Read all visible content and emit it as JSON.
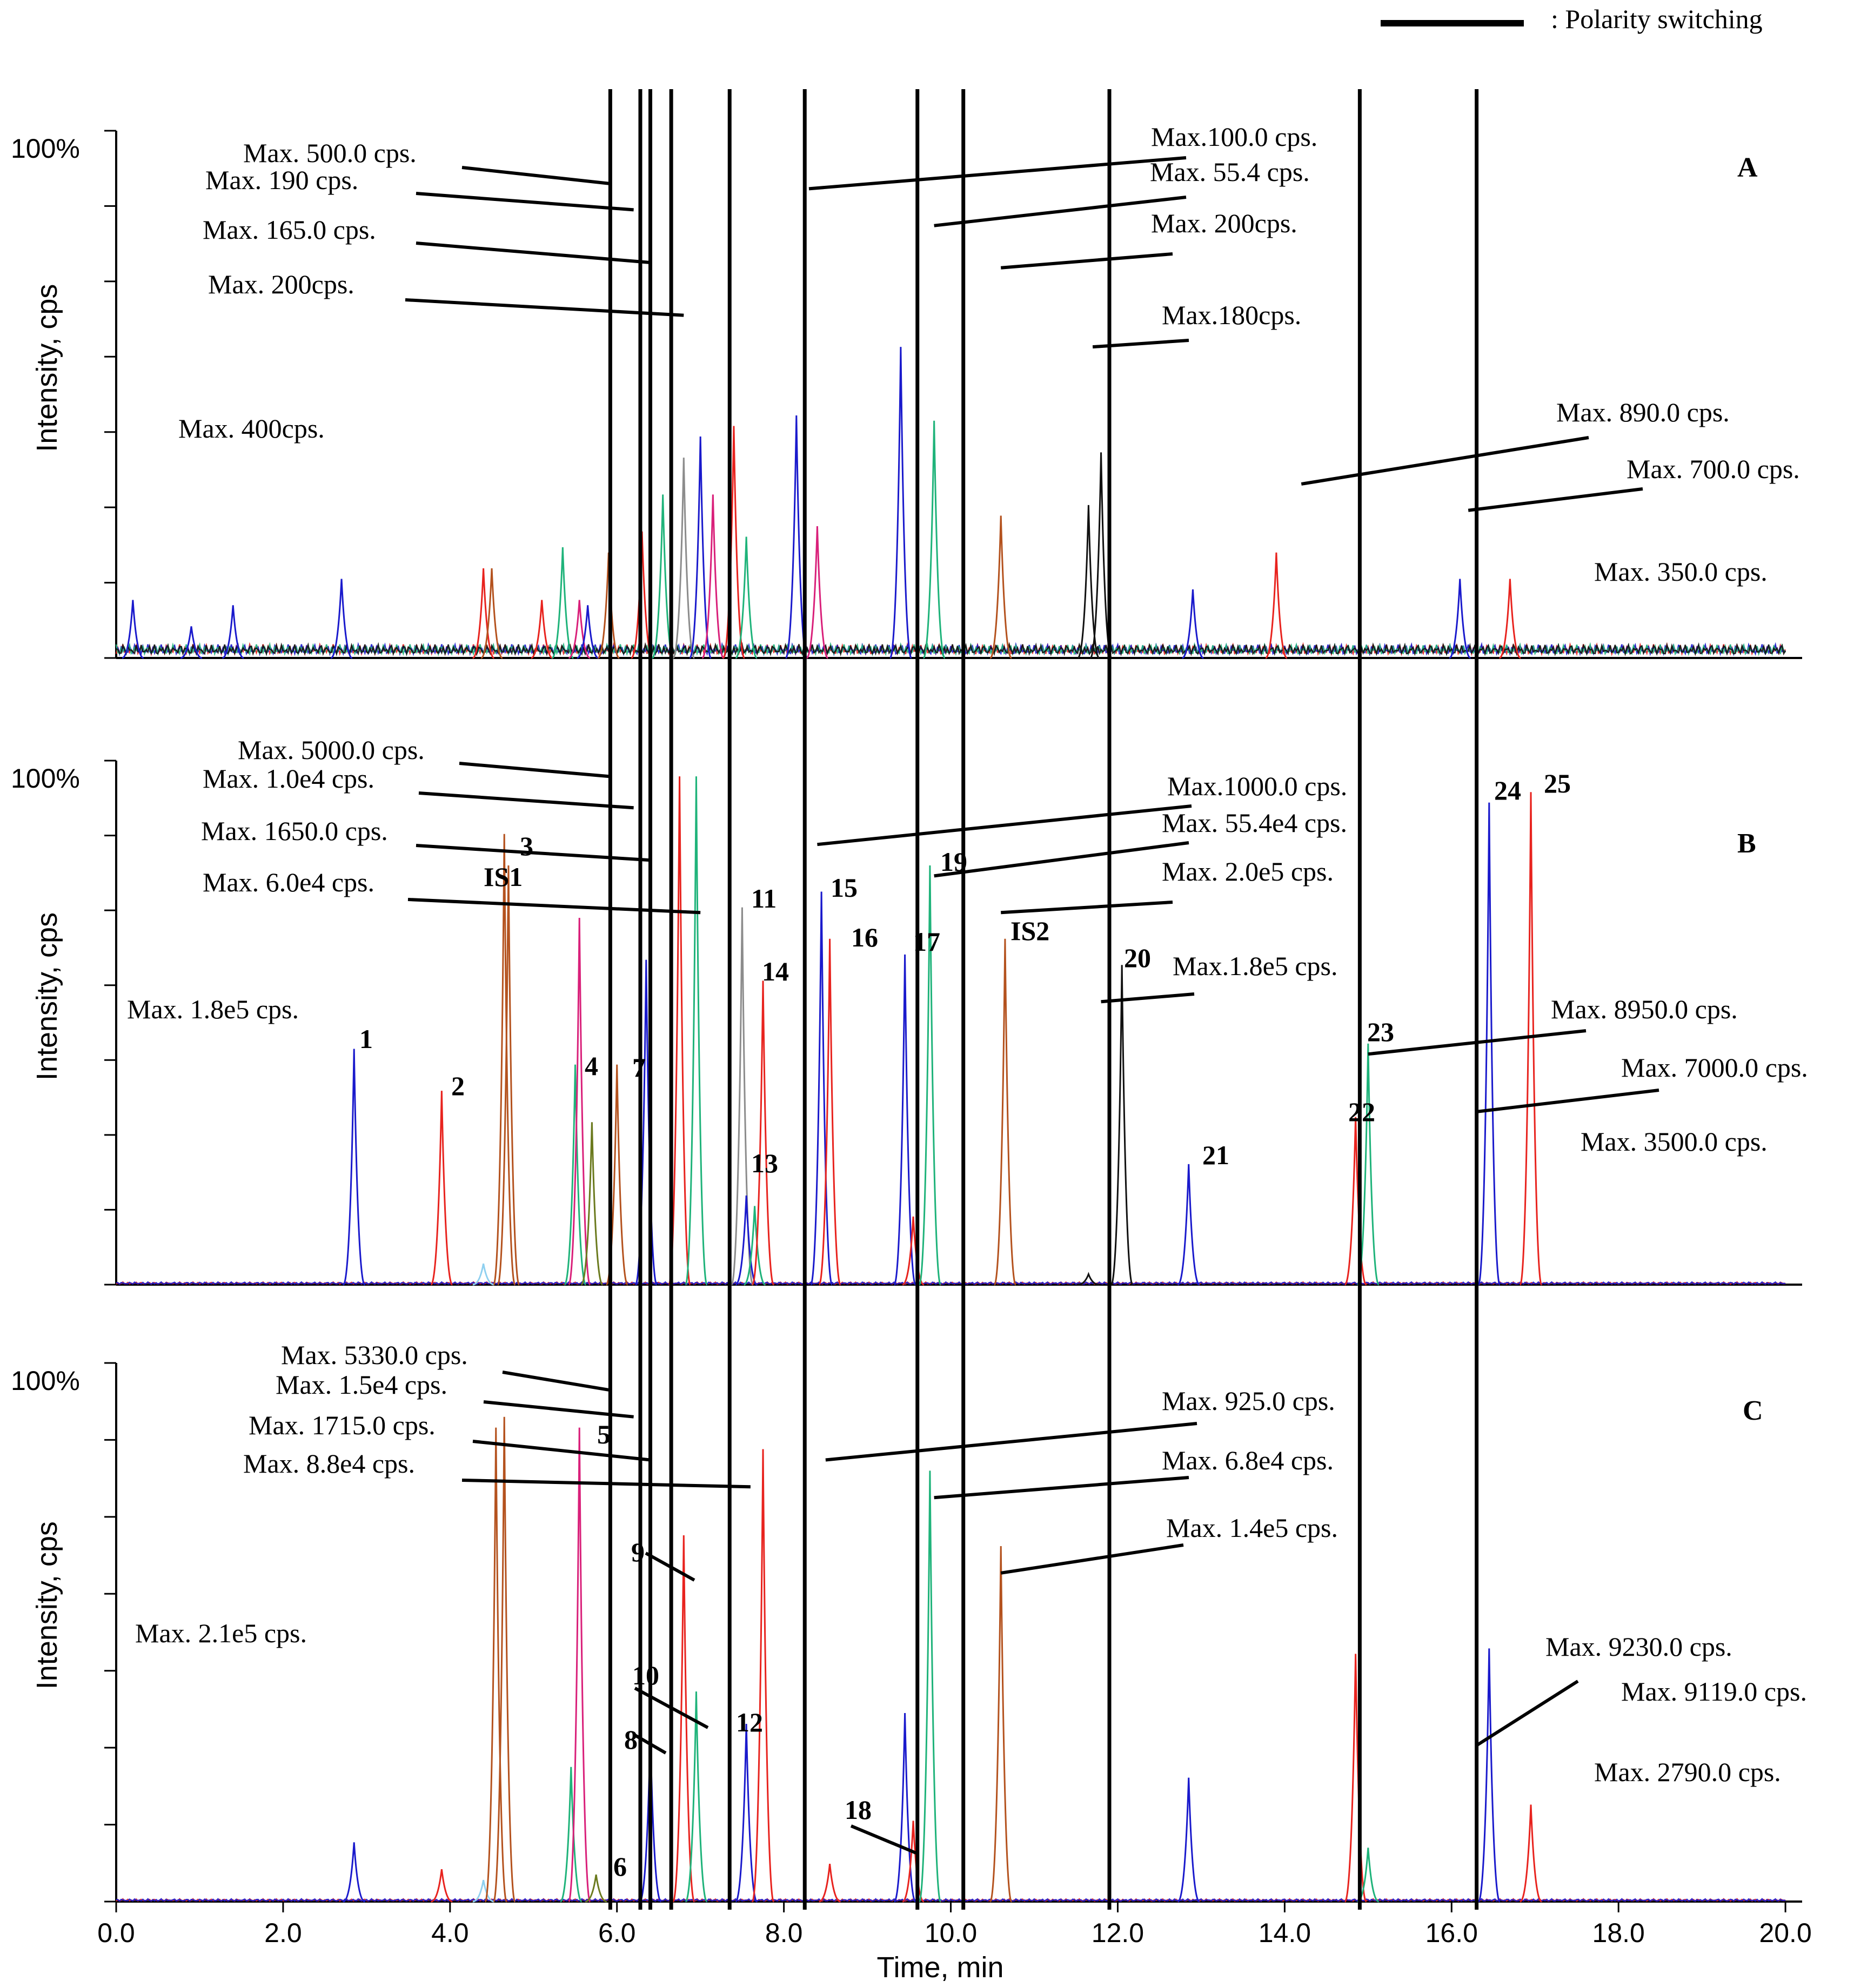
{
  "chart_data": {
    "type": "line",
    "xlabel": "Time, min",
    "x_ticks": [
      "0.0",
      "2.0",
      "4.0",
      "6.0",
      "8.0",
      "10.0",
      "12.0",
      "14.0",
      "16.0",
      "18.0",
      "20.0"
    ],
    "xlim": [
      0,
      20.2
    ],
    "legend_text": ": Polarity switching",
    "polarity_switch_times": [
      5.92,
      6.28,
      6.4,
      6.65,
      7.35,
      8.25,
      9.6,
      10.15,
      11.9,
      14.9,
      16.3
    ],
    "colors": {
      "blue": "#1a1acc",
      "red": "#e8231e",
      "green": "#1fb37a",
      "brown": "#b4521e",
      "magenta": "#d9207a",
      "olive": "#6b7a1e",
      "grey": "#8c8c8c",
      "black": "#111111",
      "lightblue": "#8fd0f0"
    },
    "panels": [
      {
        "id": "A",
        "ylabel": "Intensity, cps",
        "y_tick_label": "100%",
        "max_labels": [
          {
            "text": "Max. 500.0 cps.",
            "x": 5.9,
            "y": 0.9
          },
          {
            "text": "Max. 190 cps.",
            "x": 6.2,
            "y": 0.85
          },
          {
            "text": "Max. 165.0 cps.",
            "x": 6.4,
            "y": 0.75
          },
          {
            "text": "Max. 200cps.",
            "x": 6.8,
            "y": 0.65
          },
          {
            "text": "Max. 400cps."
          },
          {
            "text": "Max.100.0 cps.",
            "x": 8.3,
            "y": 0.89
          },
          {
            "text": "Max. 55.4 cps.",
            "x": 9.8,
            "y": 0.82
          },
          {
            "text": "Max. 200cps.",
            "x": 10.6,
            "y": 0.74
          },
          {
            "text": "Max.180cps.",
            "x": 11.7,
            "y": 0.59
          },
          {
            "text": "Max. 890.0 cps.",
            "x": 14.2,
            "y": 0.33
          },
          {
            "text": "Max. 700.0 cps.",
            "x": 16.2,
            "y": 0.28
          },
          {
            "text": "Max. 350.0 cps."
          }
        ],
        "peaks": [
          {
            "x": 0.2,
            "h": 0.11,
            "c": "blue"
          },
          {
            "x": 0.9,
            "h": 0.06,
            "c": "blue"
          },
          {
            "x": 1.4,
            "h": 0.1,
            "c": "blue"
          },
          {
            "x": 2.7,
            "h": 0.15,
            "c": "blue"
          },
          {
            "x": 4.4,
            "h": 0.17,
            "c": "red"
          },
          {
            "x": 4.5,
            "h": 0.17,
            "c": "brown"
          },
          {
            "x": 5.1,
            "h": 0.11,
            "c": "red"
          },
          {
            "x": 5.35,
            "h": 0.21,
            "c": "green"
          },
          {
            "x": 5.55,
            "h": 0.11,
            "c": "magenta"
          },
          {
            "x": 5.65,
            "h": 0.1,
            "c": "blue"
          },
          {
            "x": 5.9,
            "h": 0.2,
            "c": "brown"
          },
          {
            "x": 6.3,
            "h": 0.24,
            "c": "red"
          },
          {
            "x": 6.55,
            "h": 0.31,
            "c": "green"
          },
          {
            "x": 6.8,
            "h": 0.38,
            "c": "grey"
          },
          {
            "x": 7.0,
            "h": 0.42,
            "c": "blue"
          },
          {
            "x": 7.15,
            "h": 0.31,
            "c": "magenta"
          },
          {
            "x": 7.4,
            "h": 0.44,
            "c": "red"
          },
          {
            "x": 7.55,
            "h": 0.23,
            "c": "green"
          },
          {
            "x": 8.15,
            "h": 0.46,
            "c": "blue"
          },
          {
            "x": 8.4,
            "h": 0.25,
            "c": "magenta"
          },
          {
            "x": 9.4,
            "h": 0.59,
            "c": "blue"
          },
          {
            "x": 9.8,
            "h": 0.45,
            "c": "green"
          },
          {
            "x": 10.6,
            "h": 0.27,
            "c": "brown"
          },
          {
            "x": 11.65,
            "h": 0.29,
            "c": "black"
          },
          {
            "x": 11.8,
            "h": 0.39,
            "c": "black"
          },
          {
            "x": 12.9,
            "h": 0.13,
            "c": "blue"
          },
          {
            "x": 13.9,
            "h": 0.2,
            "c": "red"
          },
          {
            "x": 16.1,
            "h": 0.15,
            "c": "blue"
          },
          {
            "x": 16.7,
            "h": 0.15,
            "c": "red"
          }
        ]
      },
      {
        "id": "B",
        "ylabel": "Intensity, cps",
        "y_tick_label": "100%",
        "max_labels": [
          {
            "text": "Max. 5000.0 cps.",
            "x": 5.9,
            "y": 0.97
          },
          {
            "text": "Max. 1.0e4 cps.",
            "x": 6.2,
            "y": 0.91
          },
          {
            "text": "Max. 1650.0 cps.",
            "x": 6.4,
            "y": 0.81
          },
          {
            "text": "Max. 6.0e4 cps.",
            "x": 7.0,
            "y": 0.71
          },
          {
            "text": "Max. 1.8e5 cps."
          },
          {
            "text": "Max.1000.0 cps.",
            "x": 8.4,
            "y": 0.84
          },
          {
            "text": "Max. 55.4e4 cps.",
            "x": 9.8,
            "y": 0.78
          },
          {
            "text": "Max. 2.0e5 cps.",
            "x": 10.6,
            "y": 0.71
          },
          {
            "text": "Max.1.8e5 cps.",
            "x": 11.8,
            "y": 0.54
          },
          {
            "text": "Max. 8950.0 cps.",
            "x": 15.0,
            "y": 0.44
          },
          {
            "text": "Max. 7000.0 cps.",
            "x": 16.3,
            "y": 0.33
          },
          {
            "text": "Max. 3500.0 cps."
          }
        ],
        "compound_labels": [
          {
            "text": "1",
            "x": 2.9,
            "y": 0.45
          },
          {
            "text": "2",
            "x": 3.95,
            "y": 0.36
          },
          {
            "text": "IS1",
            "x": 4.45,
            "y": 0.78
          },
          {
            "text": "3",
            "x": 4.75,
            "y": 0.84
          },
          {
            "text": "4",
            "x": 5.45,
            "y": 0.41
          },
          {
            "text": "7",
            "x": 6.0,
            "y": 0.4
          },
          {
            "text": "11",
            "x": 7.55,
            "y": 0.73
          },
          {
            "text": "14",
            "x": 7.75,
            "y": 0.58
          },
          {
            "text": "13",
            "x": 7.65,
            "y": 0.19
          },
          {
            "text": "15",
            "x": 8.35,
            "y": 0.75
          },
          {
            "text": "16",
            "x": 8.65,
            "y": 0.65
          },
          {
            "text": "17",
            "x": 9.45,
            "y": 0.64
          },
          {
            "text": "19",
            "x": 9.9,
            "y": 0.8
          },
          {
            "text": "IS2",
            "x": 10.7,
            "y": 0.66
          },
          {
            "text": "20",
            "x": 11.75,
            "y": 0.61
          },
          {
            "text": "21",
            "x": 12.85,
            "y": 0.23
          },
          {
            "text": "22",
            "x": 14.85,
            "y": 0.31
          },
          {
            "text": "23",
            "x": 15.2,
            "y": 0.46
          },
          {
            "text": "24",
            "x": 16.4,
            "y": 0.92
          },
          {
            "text": "25",
            "x": 16.9,
            "y": 0.94
          }
        ],
        "peaks": [
          {
            "x": 2.85,
            "h": 0.45,
            "c": "blue"
          },
          {
            "x": 3.9,
            "h": 0.37,
            "c": "red"
          },
          {
            "x": 4.4,
            "h": 0.04,
            "c": "lightblue"
          },
          {
            "x": 4.65,
            "h": 0.86,
            "c": "brown"
          },
          {
            "x": 4.7,
            "h": 0.8,
            "c": "brown"
          },
          {
            "x": 5.5,
            "h": 0.42,
            "c": "green"
          },
          {
            "x": 5.55,
            "h": 0.7,
            "c": "magenta"
          },
          {
            "x": 5.7,
            "h": 0.31,
            "c": "olive"
          },
          {
            "x": 6.0,
            "h": 0.42,
            "c": "brown"
          },
          {
            "x": 6.35,
            "h": 0.62,
            "c": "blue"
          },
          {
            "x": 6.75,
            "h": 0.97,
            "c": "red"
          },
          {
            "x": 6.95,
            "h": 0.97,
            "c": "green"
          },
          {
            "x": 7.5,
            "h": 0.72,
            "c": "grey"
          },
          {
            "x": 7.55,
            "h": 0.17,
            "c": "blue"
          },
          {
            "x": 7.65,
            "h": 0.15,
            "c": "green"
          },
          {
            "x": 7.75,
            "h": 0.58,
            "c": "red"
          },
          {
            "x": 8.45,
            "h": 0.75,
            "c": "blue"
          },
          {
            "x": 8.55,
            "h": 0.66,
            "c": "red"
          },
          {
            "x": 9.45,
            "h": 0.63,
            "c": "blue"
          },
          {
            "x": 9.55,
            "h": 0.13,
            "c": "red"
          },
          {
            "x": 9.75,
            "h": 0.8,
            "c": "green"
          },
          {
            "x": 10.65,
            "h": 0.66,
            "c": "brown"
          },
          {
            "x": 11.65,
            "h": 0.02,
            "c": "black"
          },
          {
            "x": 12.05,
            "h": 0.61,
            "c": "black"
          },
          {
            "x": 12.85,
            "h": 0.23,
            "c": "blue"
          },
          {
            "x": 14.85,
            "h": 0.32,
            "c": "red"
          },
          {
            "x": 15.0,
            "h": 0.46,
            "c": "green"
          },
          {
            "x": 16.45,
            "h": 0.92,
            "c": "blue"
          },
          {
            "x": 16.95,
            "h": 0.94,
            "c": "red"
          }
        ]
      },
      {
        "id": "C",
        "ylabel": "Intensity, cps",
        "y_tick_label": "100%",
        "max_labels": [
          {
            "text": "Max. 5330.0 cps.",
            "x": 5.9,
            "y": 0.95
          },
          {
            "text": "Max. 1.5e4 cps.",
            "x": 6.2,
            "y": 0.9
          },
          {
            "text": "Max. 1715.0 cps.",
            "x": 6.4,
            "y": 0.82
          },
          {
            "text": "Max. 8.8e4 cps.",
            "x": 7.6,
            "y": 0.77
          },
          {
            "text": "Max. 2.1e5 cps."
          },
          {
            "text": "Max. 925.0 cps.",
            "x": 8.5,
            "y": 0.82
          },
          {
            "text": "Max. 6.8e4 cps.",
            "x": 9.8,
            "y": 0.75
          },
          {
            "text": "Max. 1.4e5 cps.",
            "x": 10.6,
            "y": 0.61
          },
          {
            "text": "Max. 9230.0 cps.",
            "x": 14.85,
            "y": 0.38
          },
          {
            "text": "Max. 9119.0 cps.",
            "x": 16.3,
            "y": 0.29
          },
          {
            "text": "Max. 2790.0 cps."
          }
        ],
        "compound_labels": [
          {
            "text": "5",
            "x": 5.6,
            "y": 0.93
          },
          {
            "text": "9",
            "x": 6.0,
            "y": 0.68
          },
          {
            "text": "10",
            "x": 6.05,
            "y": 0.43
          },
          {
            "text": "12",
            "x": 7.3,
            "y": 0.33
          },
          {
            "text": "8",
            "x": 5.95,
            "y": 0.32
          },
          {
            "text": "6",
            "x": 5.75,
            "y": 0.08
          },
          {
            "text": "18",
            "x": 8.95,
            "y": 0.17
          }
        ],
        "peaks": [
          {
            "x": 2.85,
            "h": 0.11,
            "c": "blue"
          },
          {
            "x": 3.9,
            "h": 0.06,
            "c": "red"
          },
          {
            "x": 4.4,
            "h": 0.04,
            "c": "lightblue"
          },
          {
            "x": 4.55,
            "h": 0.88,
            "c": "brown"
          },
          {
            "x": 4.65,
            "h": 0.9,
            "c": "brown"
          },
          {
            "x": 5.45,
            "h": 0.25,
            "c": "green"
          },
          {
            "x": 5.55,
            "h": 0.88,
            "c": "magenta"
          },
          {
            "x": 5.75,
            "h": 0.05,
            "c": "olive"
          },
          {
            "x": 6.4,
            "h": 0.31,
            "c": "blue"
          },
          {
            "x": 6.8,
            "h": 0.68,
            "c": "red"
          },
          {
            "x": 6.95,
            "h": 0.39,
            "c": "green"
          },
          {
            "x": 7.55,
            "h": 0.33,
            "c": "blue"
          },
          {
            "x": 7.75,
            "h": 0.84,
            "c": "red"
          },
          {
            "x": 8.55,
            "h": 0.07,
            "c": "red"
          },
          {
            "x": 9.45,
            "h": 0.35,
            "c": "blue"
          },
          {
            "x": 9.55,
            "h": 0.15,
            "c": "red"
          },
          {
            "x": 9.75,
            "h": 0.8,
            "c": "green"
          },
          {
            "x": 10.6,
            "h": 0.66,
            "c": "brown"
          },
          {
            "x": 12.85,
            "h": 0.23,
            "c": "blue"
          },
          {
            "x": 14.85,
            "h": 0.46,
            "c": "red"
          },
          {
            "x": 15.0,
            "h": 0.1,
            "c": "green"
          },
          {
            "x": 16.45,
            "h": 0.47,
            "c": "blue"
          },
          {
            "x": 16.95,
            "h": 0.18,
            "c": "red"
          }
        ]
      }
    ]
  }
}
